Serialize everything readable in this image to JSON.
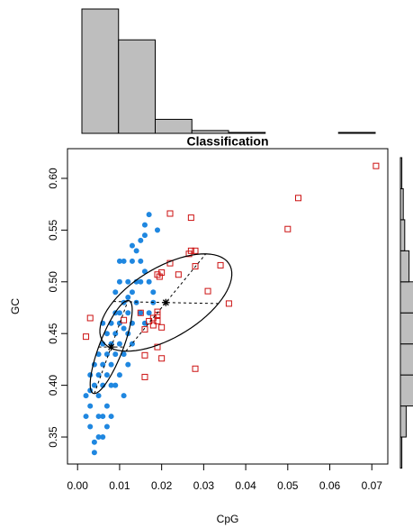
{
  "chart_data": {
    "type": "scatter",
    "title": "Classification",
    "x_label": "CpG",
    "y_label": "GC",
    "xlim": [
      -0.0024,
      0.0738
    ],
    "ylim": [
      0.3239,
      0.6287
    ],
    "xticks": [
      {
        "value": 0,
        "label": "0.00"
      },
      0.01,
      0.02,
      0.03,
      0.04,
      0.05,
      0.06,
      0.07
    ],
    "yticks": [
      0.35,
      {
        "value": 0.4,
        "label": "0.40"
      },
      0.45,
      {
        "value": 0.5,
        "label": "0.50"
      },
      0.55,
      {
        "value": 0.6,
        "label": "0.60"
      }
    ],
    "series": [
      {
        "color": "#1f87e0",
        "marker": "circle",
        "x": [
          0.002,
          0.003,
          0.003,
          0.004,
          0.004,
          0.005,
          0.004,
          0.005,
          0.006,
          0.006,
          0.003,
          0.007,
          0.006,
          0.007,
          0.005,
          0.008,
          0.008,
          0.009,
          0.01,
          0.009,
          0.01,
          0.011,
          0.012,
          0.012,
          0.013,
          0.011,
          0.007,
          0.008,
          0.009,
          0.01,
          0.012,
          0.013,
          0.014,
          0.015,
          0.016,
          0.017,
          0.011,
          0.013,
          0.015,
          0.014,
          0.016,
          0.017,
          0.018,
          0.014,
          0.015,
          0.016,
          0.013,
          0.012,
          0.01,
          0.009,
          0.007,
          0.006,
          0.008,
          0.006,
          0.005,
          0.008,
          0.004,
          0.003,
          0.002,
          0.007,
          0.005,
          0.01,
          0.011,
          0.012,
          0.017,
          0.018,
          0.019,
          0.016,
          0.015,
          0.009,
          0.006,
          0.011,
          0.013,
          0.01
        ],
        "y": [
          0.37,
          0.38,
          0.36,
          0.335,
          0.345,
          0.39,
          0.4,
          0.41,
          0.35,
          0.37,
          0.395,
          0.38,
          0.42,
          0.43,
          0.43,
          0.4,
          0.42,
          0.45,
          0.44,
          0.47,
          0.46,
          0.48,
          0.47,
          0.45,
          0.44,
          0.43,
          0.45,
          0.46,
          0.49,
          0.5,
          0.5,
          0.52,
          0.53,
          0.54,
          0.545,
          0.565,
          0.52,
          0.535,
          0.52,
          0.5,
          0.51,
          0.5,
          0.49,
          0.48,
          0.47,
          0.46,
          0.46,
          0.42,
          0.41,
          0.4,
          0.41,
          0.44,
          0.44,
          0.4,
          0.37,
          0.37,
          0.42,
          0.41,
          0.39,
          0.36,
          0.35,
          0.47,
          0.455,
          0.485,
          0.47,
          0.48,
          0.55,
          0.555,
          0.5,
          0.43,
          0.46,
          0.39,
          0.49,
          0.52
        ]
      },
      {
        "color": "#cc1111",
        "marker": "square",
        "x": [
          0.071,
          0.0525,
          0.05,
          0.022,
          0.027,
          0.027,
          0.028,
          0.0265,
          0.034,
          0.028,
          0.022,
          0.019,
          0.02,
          0.0195,
          0.024,
          0.031,
          0.036,
          0.003,
          0.002,
          0.017,
          0.018,
          0.019,
          0.019,
          0.019,
          0.02,
          0.016,
          0.019,
          0.016,
          0.02,
          0.016,
          0.028,
          0.011,
          0.015,
          0.018
        ],
        "y": [
          0.612,
          0.581,
          0.551,
          0.566,
          0.562,
          0.53,
          0.53,
          0.527,
          0.516,
          0.515,
          0.518,
          0.507,
          0.509,
          0.505,
          0.507,
          0.491,
          0.479,
          0.465,
          0.447,
          0.462,
          0.465,
          0.471,
          0.468,
          0.462,
          0.456,
          0.454,
          0.437,
          0.429,
          0.426,
          0.408,
          0.416,
          0.463,
          0.47,
          0.458
        ]
      }
    ],
    "ellipses": [
      {
        "center_x": 0.008,
        "center_y": 0.437,
        "major_dx": 0.004,
        "major_dy": 0.045,
        "minor_dx": 0.003,
        "minor_dy": 0
      },
      {
        "center_x": 0.021,
        "center_y": 0.48,
        "major_dx": 0.0095,
        "major_dy": 0.047,
        "minor_dx": 0.0125,
        "minor_dy": -0.001
      }
    ],
    "x_histogram": {
      "bins": [
        0,
        0.009,
        0.018,
        0.027,
        0.036,
        0.045,
        0.054,
        0.063,
        0.072
      ],
      "counts": [
        133,
        100,
        15,
        3,
        1,
        0,
        0,
        1
      ]
    },
    "y_histogram": {
      "bins": [
        0.32,
        0.35,
        0.38,
        0.41,
        0.44,
        0.47,
        0.5,
        0.53,
        0.56,
        0.59,
        0.62
      ],
      "counts": [
        1,
        4,
        40,
        70,
        75,
        50,
        6,
        3,
        2,
        1
      ]
    }
  }
}
